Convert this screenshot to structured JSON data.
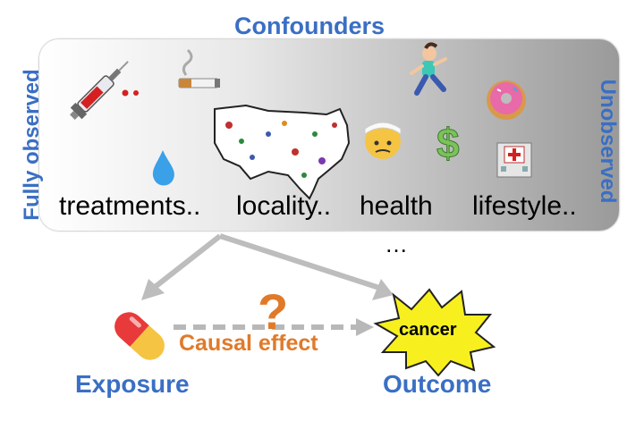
{
  "title": "Confounders",
  "side_left": "Fully observed",
  "side_right": "Unobserved",
  "categories": [
    "treatments..",
    "locality..",
    "health",
    "lifestyle.."
  ],
  "ellipsis": "…",
  "exposure": "Exposure",
  "outcome": "Outcome",
  "outcome_badge": "cancer",
  "edge_label": "Causal effect",
  "question_mark": "?",
  "icons": [
    "syringe-icon",
    "cigarette-icon",
    "water-drop-icon",
    "usa-map-icon",
    "runner-icon",
    "donut-icon",
    "bandaged-face-icon",
    "dollar-icon",
    "hospital-icon",
    "pill-icon"
  ],
  "colors": {
    "blue": "#3a6fc4",
    "orange": "#e07a2a",
    "yellow": "#f7f01e",
    "arrow_gray": "#bdbdbd"
  }
}
